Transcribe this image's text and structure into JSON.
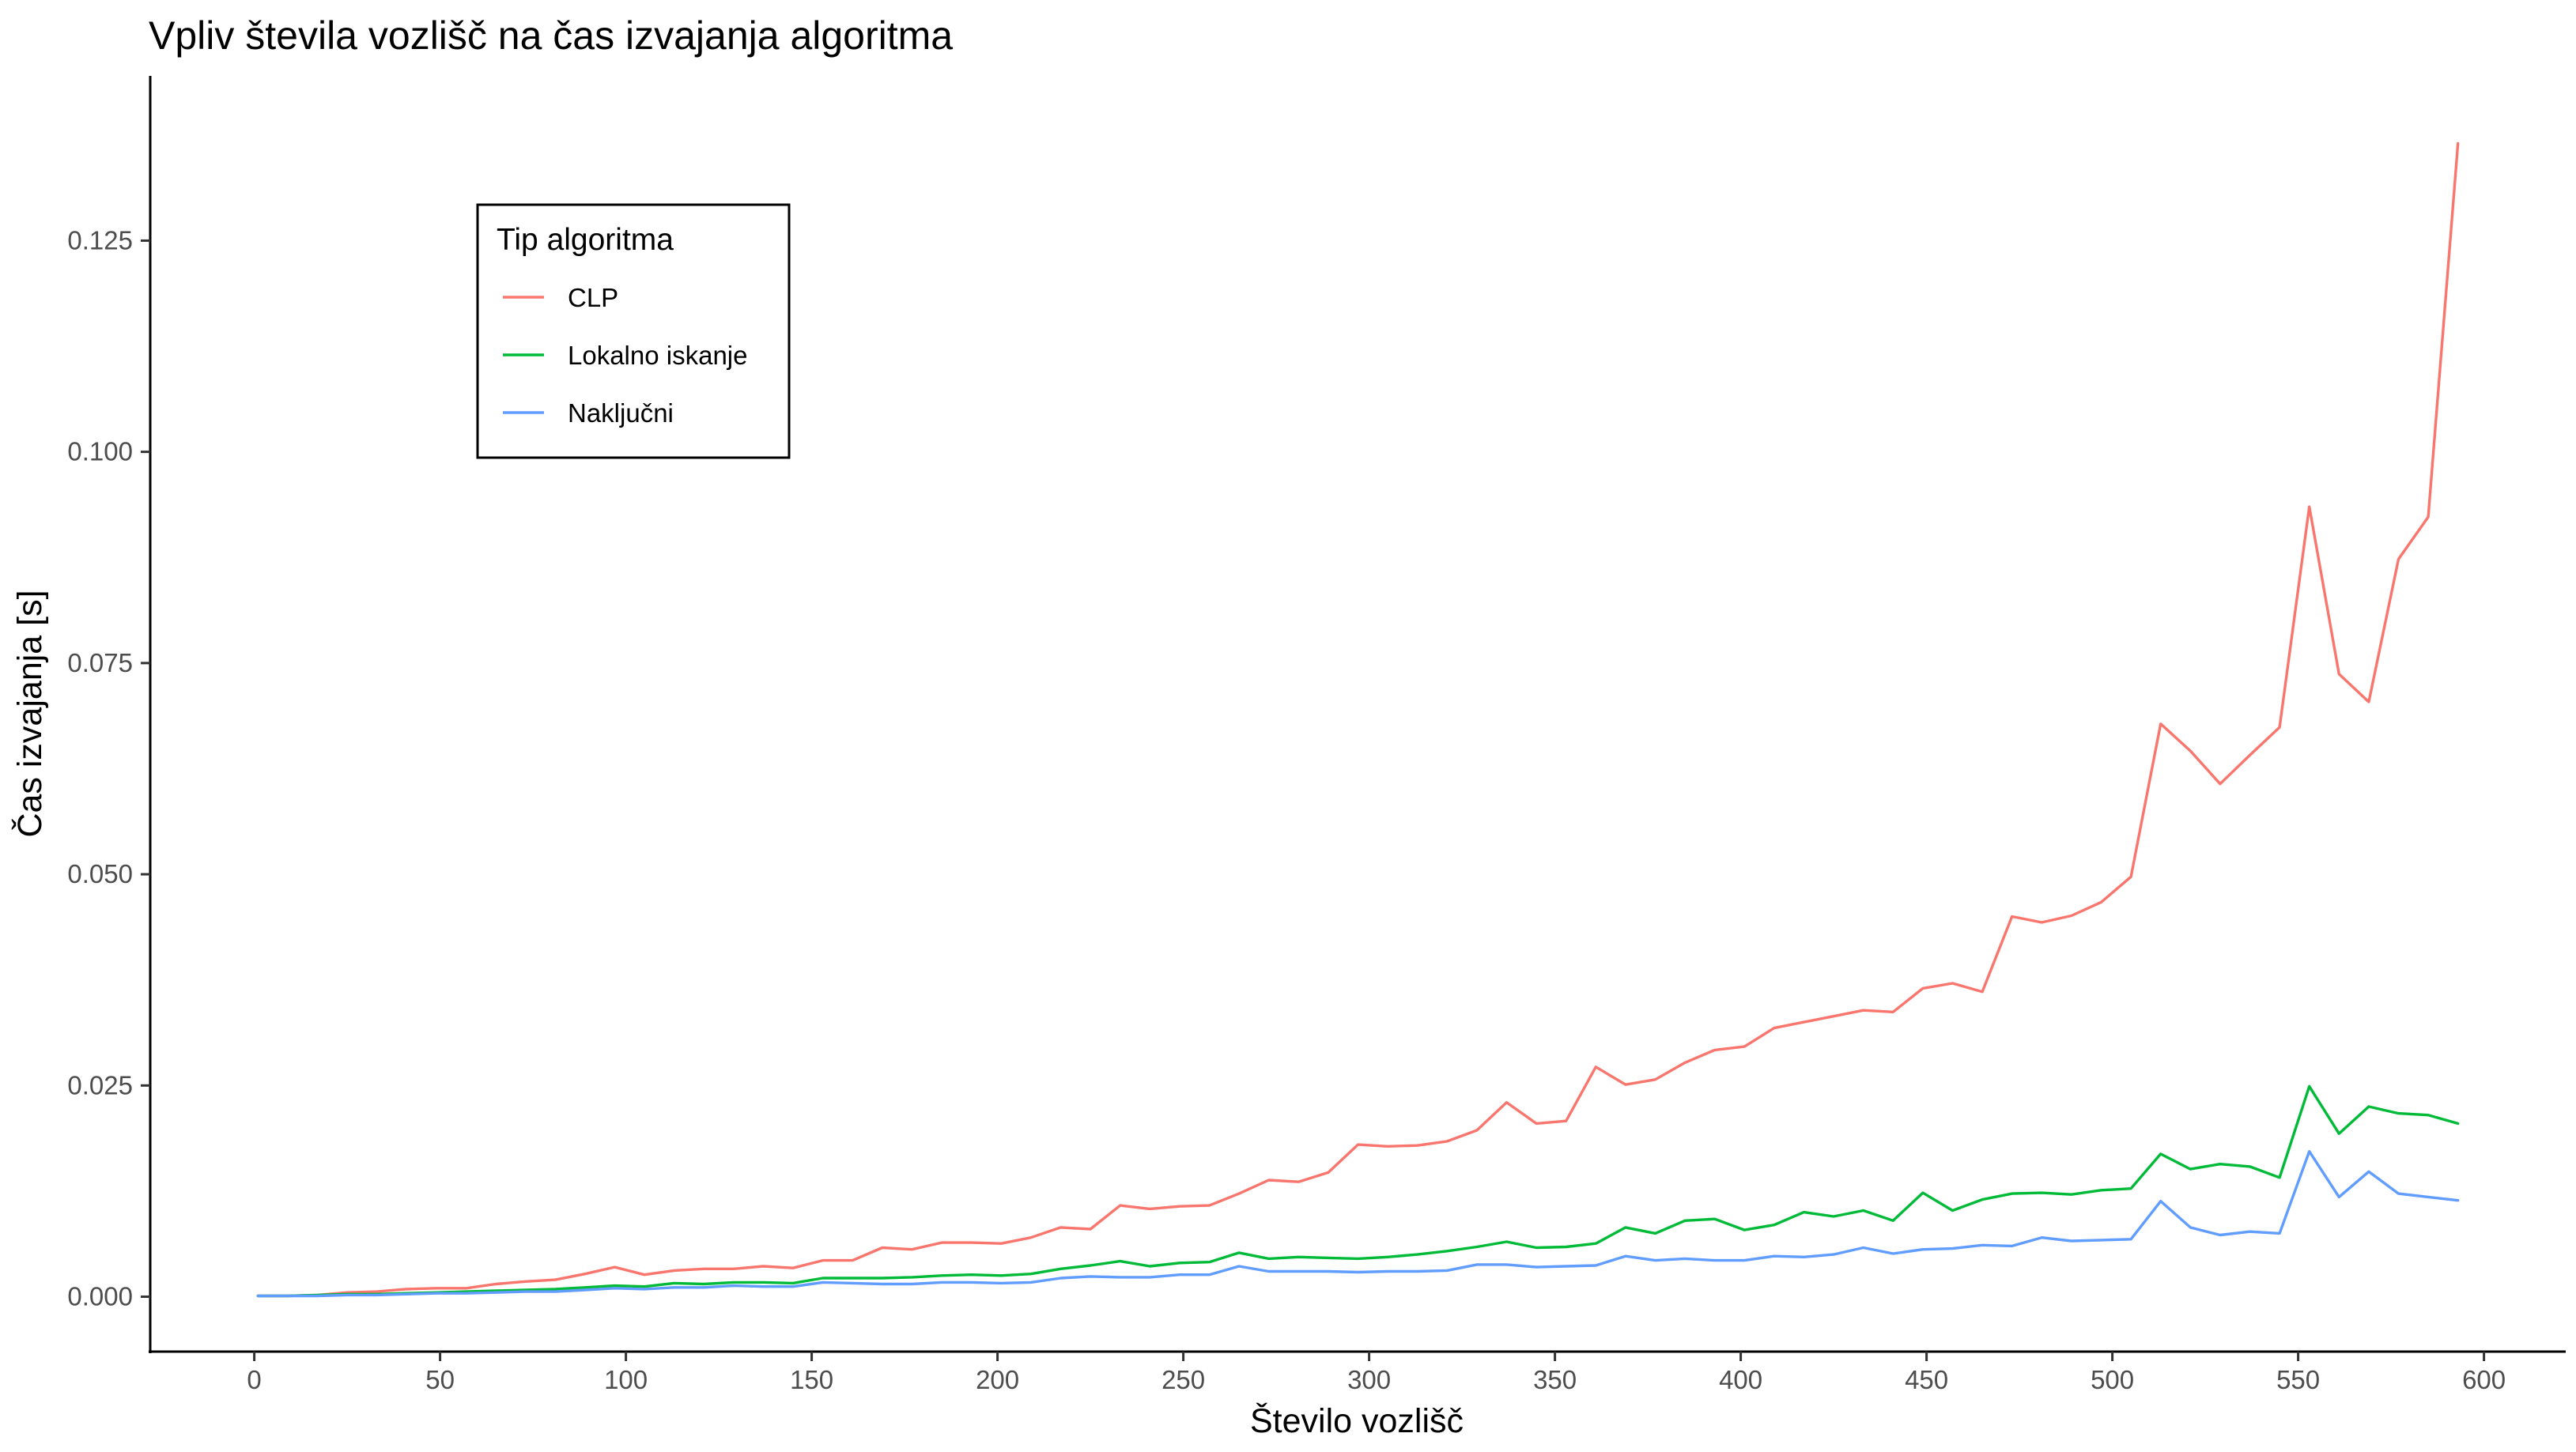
{
  "chart_data": {
    "type": "line",
    "title": "Vpliv števila vozlišč na čas izvajanja algoritma",
    "xlabel": "Število vozlišč",
    "ylabel": "Čas izvajanja [s]",
    "xlim": [
      -28,
      622
    ],
    "ylim": [
      -0.0065,
      0.1445
    ],
    "x_ticks": [
      0,
      50,
      100,
      150,
      200,
      250,
      300,
      350,
      400,
      450,
      500,
      550,
      600
    ],
    "y_ticks": [
      0.0,
      0.025,
      0.05,
      0.075,
      0.1,
      0.125
    ],
    "x_tick_labels": [
      "0",
      "50",
      "100",
      "150",
      "200",
      "250",
      "300",
      "350",
      "400",
      "450",
      "500",
      "550",
      "600"
    ],
    "y_tick_labels": [
      "0.000",
      "0.025",
      "0.050",
      "0.075",
      "0.100",
      "0.125"
    ],
    "grid": false,
    "legend": {
      "title": "Tip algoritma",
      "position": "top-left-inside"
    },
    "x": [
      1,
      9,
      17,
      25,
      33,
      41,
      49,
      57,
      65,
      73,
      81,
      89,
      97,
      105,
      113,
      121,
      129,
      137,
      145,
      153,
      161,
      169,
      177,
      185,
      193,
      201,
      209,
      217,
      225,
      233,
      241,
      249,
      257,
      265,
      273,
      281,
      289,
      297,
      305,
      313,
      321,
      329,
      337,
      345,
      353,
      361,
      369,
      377,
      385,
      393,
      401,
      409,
      417,
      425,
      433,
      441,
      449,
      457,
      465,
      473,
      481,
      489,
      497,
      505,
      513,
      521,
      529,
      537,
      545,
      553,
      561,
      569,
      577,
      585,
      593
    ],
    "series": [
      {
        "name": "CLP",
        "color": "#F8766D",
        "values": [
          0.0001,
          0.0001,
          0.0002,
          0.0005,
          0.0006,
          0.0009,
          0.001,
          0.001,
          0.0015,
          0.0018,
          0.002,
          0.0027,
          0.0035,
          0.0026,
          0.0031,
          0.0033,
          0.0033,
          0.0036,
          0.0034,
          0.0043,
          0.0043,
          0.0058,
          0.0056,
          0.0064,
          0.0064,
          0.0063,
          0.007,
          0.0082,
          0.008,
          0.0108,
          0.0104,
          0.0107,
          0.0108,
          0.0122,
          0.0138,
          0.0136,
          0.0147,
          0.018,
          0.0178,
          0.0179,
          0.0184,
          0.0197,
          0.023,
          0.0205,
          0.0208,
          0.0272,
          0.0251,
          0.0257,
          0.0277,
          0.0292,
          0.0296,
          0.0318,
          0.0325,
          0.0332,
          0.0339,
          0.0337,
          0.0365,
          0.0371,
          0.0361,
          0.045,
          0.0443,
          0.0451,
          0.0467,
          0.0497,
          0.0678,
          0.0646,
          0.0607,
          0.0641,
          0.0674,
          0.0935,
          0.0737,
          0.0704,
          0.0873,
          0.0923,
          0.1365
        ]
      },
      {
        "name": "Lokalno iskanje",
        "color": "#00BA38",
        "values": [
          0.0001,
          0.0001,
          0.0002,
          0.0003,
          0.0003,
          0.0004,
          0.0005,
          0.0006,
          0.0007,
          0.0008,
          0.0009,
          0.0011,
          0.0013,
          0.0012,
          0.0016,
          0.0015,
          0.0017,
          0.0017,
          0.0016,
          0.0022,
          0.0022,
          0.0022,
          0.0023,
          0.0025,
          0.0026,
          0.0025,
          0.0027,
          0.0033,
          0.0037,
          0.0042,
          0.0036,
          0.004,
          0.0041,
          0.0052,
          0.0045,
          0.0047,
          0.0046,
          0.0045,
          0.0047,
          0.005,
          0.0054,
          0.0059,
          0.0065,
          0.0058,
          0.0059,
          0.0063,
          0.0082,
          0.0075,
          0.009,
          0.0092,
          0.0079,
          0.0085,
          0.01,
          0.0095,
          0.0102,
          0.009,
          0.0123,
          0.0102,
          0.0115,
          0.0122,
          0.0123,
          0.0121,
          0.0126,
          0.0128,
          0.0169,
          0.0151,
          0.0157,
          0.0154,
          0.0141,
          0.0249,
          0.0193,
          0.0225,
          0.0217,
          0.0215,
          0.0205
        ]
      },
      {
        "name": "Naključni",
        "color": "#619CFF",
        "values": [
          0.0001,
          0.0001,
          0.0001,
          0.0002,
          0.0002,
          0.0003,
          0.0004,
          0.0004,
          0.0005,
          0.0006,
          0.0006,
          0.0008,
          0.001,
          0.0009,
          0.0011,
          0.0011,
          0.0013,
          0.0012,
          0.0012,
          0.0017,
          0.0016,
          0.0015,
          0.0015,
          0.0017,
          0.0017,
          0.0016,
          0.0017,
          0.0022,
          0.0024,
          0.0023,
          0.0023,
          0.0026,
          0.0026,
          0.0036,
          0.003,
          0.003,
          0.003,
          0.0029,
          0.003,
          0.003,
          0.0031,
          0.0038,
          0.0038,
          0.0035,
          0.0036,
          0.0037,
          0.0048,
          0.0043,
          0.0045,
          0.0043,
          0.0043,
          0.0048,
          0.0047,
          0.005,
          0.0058,
          0.0051,
          0.0056,
          0.0057,
          0.0061,
          0.006,
          0.007,
          0.0066,
          0.0067,
          0.0068,
          0.0113,
          0.0082,
          0.0073,
          0.0077,
          0.0075,
          0.0172,
          0.0118,
          0.0148,
          0.0122,
          0.0118,
          0.0114
        ]
      }
    ]
  }
}
